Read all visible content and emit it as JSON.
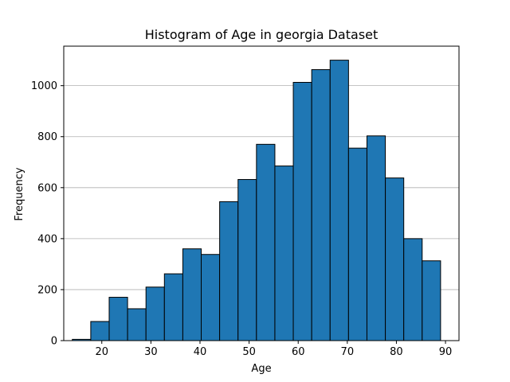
{
  "chart_data": {
    "type": "bar",
    "title": "Histogram of Age in georgia Dataset",
    "xlabel": "Age",
    "ylabel": "Frequency",
    "xlim": [
      12.25,
      92.75
    ],
    "ylim": [
      0,
      1155
    ],
    "xticks": [
      20,
      30,
      40,
      50,
      60,
      70,
      80,
      90
    ],
    "yticks": [
      0,
      200,
      400,
      600,
      800,
      1000
    ],
    "grid": "y",
    "bar_color": "#1f77b4",
    "edge_color": "#000000",
    "bins": [
      {
        "x0": 14.0,
        "x1": 17.75,
        "count": 5
      },
      {
        "x0": 17.75,
        "x1": 21.5,
        "count": 75
      },
      {
        "x0": 21.5,
        "x1": 25.25,
        "count": 170
      },
      {
        "x0": 25.25,
        "x1": 29.0,
        "count": 125
      },
      {
        "x0": 29.0,
        "x1": 32.75,
        "count": 210
      },
      {
        "x0": 32.75,
        "x1": 36.5,
        "count": 262
      },
      {
        "x0": 36.5,
        "x1": 40.25,
        "count": 360
      },
      {
        "x0": 40.25,
        "x1": 44.0,
        "count": 338
      },
      {
        "x0": 44.0,
        "x1": 47.75,
        "count": 545
      },
      {
        "x0": 47.75,
        "x1": 51.5,
        "count": 632
      },
      {
        "x0": 51.5,
        "x1": 55.25,
        "count": 770
      },
      {
        "x0": 55.25,
        "x1": 59.0,
        "count": 685
      },
      {
        "x0": 59.0,
        "x1": 62.75,
        "count": 1013
      },
      {
        "x0": 62.75,
        "x1": 66.5,
        "count": 1063
      },
      {
        "x0": 66.5,
        "x1": 70.25,
        "count": 1100
      },
      {
        "x0": 70.25,
        "x1": 74.0,
        "count": 755
      },
      {
        "x0": 74.0,
        "x1": 77.75,
        "count": 803
      },
      {
        "x0": 77.75,
        "x1": 81.5,
        "count": 638
      },
      {
        "x0": 81.5,
        "x1": 85.25,
        "count": 400
      },
      {
        "x0": 85.25,
        "x1": 89.0,
        "count": 313
      }
    ]
  }
}
